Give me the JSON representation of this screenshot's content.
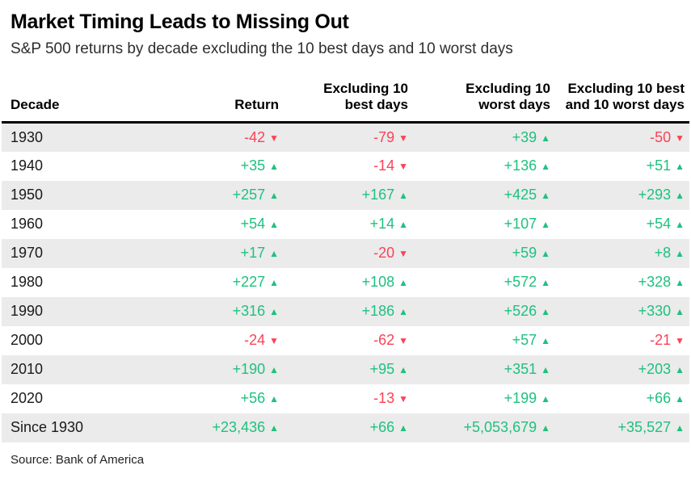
{
  "title": "Market Timing Leads to Missing Out",
  "subtitle": "S&P 500 returns by decade excluding the 10 best days and 10 worst days",
  "source": "Source: Bank of America",
  "icons": {
    "up": "▲",
    "down": "▼"
  },
  "colors": {
    "positive": "#1fc17f",
    "negative": "#fb4257",
    "row_shade": "#ebebeb",
    "header_rule": "#000000"
  },
  "chart_data": {
    "type": "table",
    "columns": [
      {
        "label_lines": [
          "Decade"
        ],
        "align": "left"
      },
      {
        "label_lines": [
          "Return"
        ],
        "align": "right"
      },
      {
        "label_lines": [
          "Excluding 10",
          "best days"
        ],
        "align": "right"
      },
      {
        "label_lines": [
          "Excluding 10",
          "worst days"
        ],
        "align": "right"
      },
      {
        "label_lines": [
          "Excluding 10 best",
          "and 10 worst days"
        ],
        "align": "right"
      }
    ],
    "rows": [
      {
        "decade": "1930",
        "cells": [
          {
            "value": "-42",
            "direction": "down"
          },
          {
            "value": "-79",
            "direction": "down"
          },
          {
            "value": "+39",
            "direction": "up"
          },
          {
            "value": "-50",
            "direction": "down"
          }
        ]
      },
      {
        "decade": "1940",
        "cells": [
          {
            "value": "+35",
            "direction": "up"
          },
          {
            "value": "-14",
            "direction": "down"
          },
          {
            "value": "+136",
            "direction": "up"
          },
          {
            "value": "+51",
            "direction": "up"
          }
        ]
      },
      {
        "decade": "1950",
        "cells": [
          {
            "value": "+257",
            "direction": "up"
          },
          {
            "value": "+167",
            "direction": "up"
          },
          {
            "value": "+425",
            "direction": "up"
          },
          {
            "value": "+293",
            "direction": "up"
          }
        ]
      },
      {
        "decade": "1960",
        "cells": [
          {
            "value": "+54",
            "direction": "up"
          },
          {
            "value": "+14",
            "direction": "up"
          },
          {
            "value": "+107",
            "direction": "up"
          },
          {
            "value": "+54",
            "direction": "up"
          }
        ]
      },
      {
        "decade": "1970",
        "cells": [
          {
            "value": "+17",
            "direction": "up"
          },
          {
            "value": "-20",
            "direction": "down"
          },
          {
            "value": "+59",
            "direction": "up"
          },
          {
            "value": "+8",
            "direction": "up"
          }
        ]
      },
      {
        "decade": "1980",
        "cells": [
          {
            "value": "+227",
            "direction": "up"
          },
          {
            "value": "+108",
            "direction": "up"
          },
          {
            "value": "+572",
            "direction": "up"
          },
          {
            "value": "+328",
            "direction": "up"
          }
        ]
      },
      {
        "decade": "1990",
        "cells": [
          {
            "value": "+316",
            "direction": "up"
          },
          {
            "value": "+186",
            "direction": "up"
          },
          {
            "value": "+526",
            "direction": "up"
          },
          {
            "value": "+330",
            "direction": "up"
          }
        ]
      },
      {
        "decade": "2000",
        "cells": [
          {
            "value": "-24",
            "direction": "down"
          },
          {
            "value": "-62",
            "direction": "down"
          },
          {
            "value": "+57",
            "direction": "up"
          },
          {
            "value": "-21",
            "direction": "down"
          }
        ]
      },
      {
        "decade": "2010",
        "cells": [
          {
            "value": "+190",
            "direction": "up"
          },
          {
            "value": "+95",
            "direction": "up"
          },
          {
            "value": "+351",
            "direction": "up"
          },
          {
            "value": "+203",
            "direction": "up"
          }
        ]
      },
      {
        "decade": "2020",
        "cells": [
          {
            "value": "+56",
            "direction": "up"
          },
          {
            "value": "-13",
            "direction": "down"
          },
          {
            "value": "+199",
            "direction": "up"
          },
          {
            "value": "+66",
            "direction": "up"
          }
        ]
      },
      {
        "decade": "Since 1930",
        "cells": [
          {
            "value": "+23,436",
            "direction": "up"
          },
          {
            "value": "+66",
            "direction": "up"
          },
          {
            "value": "+5,053,679",
            "direction": "up"
          },
          {
            "value": "+35,527",
            "direction": "up"
          }
        ]
      }
    ]
  }
}
